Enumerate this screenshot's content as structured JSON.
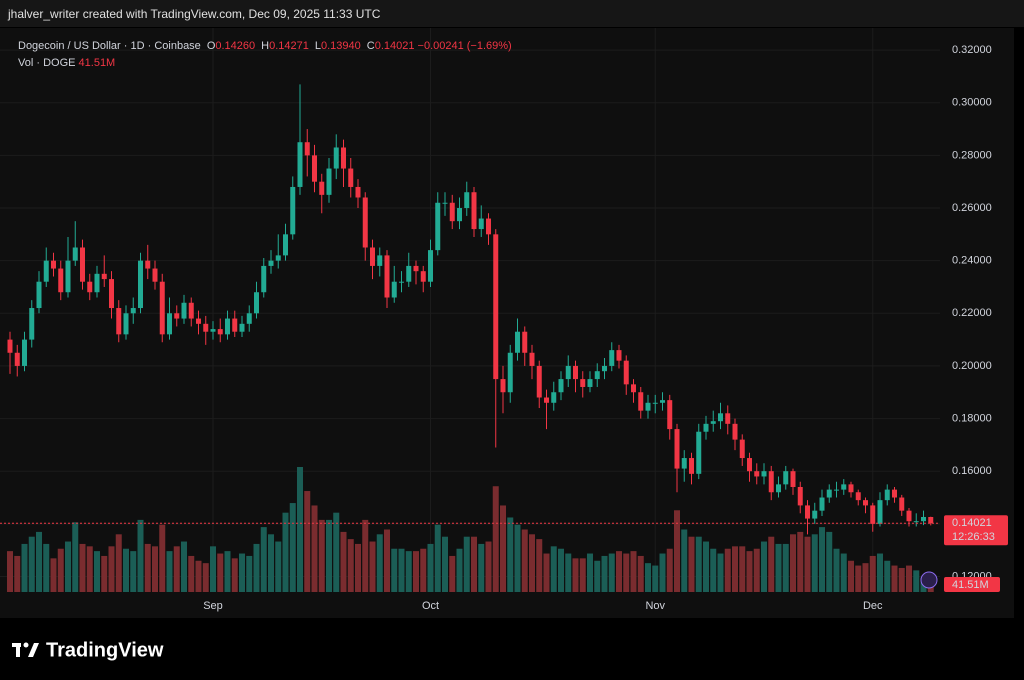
{
  "chart_data": {
    "type": "candlestick",
    "header": "jhalver_writer created with TradingView.com, Dec 09, 2025 11:33 UTC",
    "title": "Dogecoin / US Dollar · 1D · Coinbase",
    "ohlc_labels": [
      {
        "key": "O",
        "value": "0.14260"
      },
      {
        "key": "H",
        "value": "0.14271"
      },
      {
        "key": "L",
        "value": "0.13940"
      },
      {
        "key": "C",
        "value": "0.14021"
      }
    ],
    "change": "−0.00241 (−1.69%)",
    "volume_title": "Vol · DOGE",
    "volume_value": "41.51M",
    "categories": [
      null,
      null,
      null,
      null,
      null,
      null,
      null,
      null,
      null,
      null,
      null,
      null,
      null,
      null,
      null,
      null,
      null,
      null,
      null,
      null,
      null,
      null,
      null,
      null,
      null,
      null,
      null,
      null,
      "Sep",
      null,
      null,
      null,
      null,
      null,
      null,
      null,
      null,
      null,
      null,
      null,
      null,
      null,
      null,
      null,
      null,
      null,
      null,
      null,
      null,
      null,
      null,
      null,
      null,
      null,
      null,
      null,
      null,
      null,
      "Oct",
      null,
      null,
      null,
      null,
      null,
      null,
      null,
      null,
      null,
      null,
      null,
      null,
      null,
      null,
      null,
      null,
      null,
      null,
      null,
      null,
      null,
      null,
      null,
      null,
      null,
      null,
      null,
      null,
      null,
      null,
      "Nov",
      null,
      null,
      null,
      null,
      null,
      null,
      null,
      null,
      null,
      null,
      null,
      null,
      null,
      null,
      null,
      null,
      null,
      null,
      null,
      null,
      null,
      null,
      null,
      null,
      null,
      null,
      null,
      null,
      null,
      "Dec",
      null,
      null,
      null,
      null,
      null,
      null,
      null,
      null
    ],
    "open": [
      0.21,
      0.205,
      0.2,
      0.21,
      0.222,
      0.232,
      0.24,
      0.237,
      0.228,
      0.24,
      0.245,
      0.232,
      0.228,
      0.235,
      0.233,
      0.222,
      0.212,
      0.22,
      0.222,
      0.24,
      0.237,
      0.232,
      0.212,
      0.22,
      0.218,
      0.224,
      0.218,
      0.216,
      0.213,
      0.214,
      0.212,
      0.218,
      0.213,
      0.216,
      0.22,
      0.228,
      0.238,
      0.24,
      0.242,
      0.25,
      0.268,
      0.285,
      0.28,
      0.27,
      0.265,
      0.275,
      0.283,
      0.275,
      0.268,
      0.264,
      0.245,
      0.238,
      0.242,
      0.226,
      0.232,
      0.232,
      0.238,
      0.236,
      0.232,
      0.244,
      0.262,
      0.262,
      0.255,
      0.26,
      0.266,
      0.252,
      0.256,
      0.25,
      0.195,
      0.19,
      0.205,
      0.213,
      0.205,
      0.2,
      0.188,
      0.186,
      0.19,
      0.195,
      0.2,
      0.195,
      0.192,
      0.195,
      0.198,
      0.2,
      0.206,
      0.202,
      0.193,
      0.19,
      0.183,
      0.186,
      0.186,
      0.187,
      0.176,
      0.161,
      0.165,
      0.159,
      0.175,
      0.178,
      0.179,
      0.182,
      0.178,
      0.172,
      0.165,
      0.16,
      0.158,
      0.16,
      0.152,
      0.155,
      0.16,
      0.154,
      0.147,
      0.142,
      0.145,
      0.15,
      0.153,
      0.153,
      0.155,
      0.152,
      0.149,
      0.147,
      0.14,
      0.149,
      0.153,
      0.15,
      0.145,
      0.141,
      0.141,
      0.1426
    ],
    "high": [
      0.213,
      0.208,
      0.213,
      0.225,
      0.236,
      0.245,
      0.243,
      0.24,
      0.249,
      0.255,
      0.248,
      0.235,
      0.238,
      0.242,
      0.236,
      0.225,
      0.223,
      0.226,
      0.243,
      0.246,
      0.24,
      0.235,
      0.226,
      0.223,
      0.227,
      0.226,
      0.221,
      0.219,
      0.217,
      0.218,
      0.221,
      0.221,
      0.219,
      0.223,
      0.232,
      0.241,
      0.244,
      0.25,
      0.254,
      0.272,
      0.307,
      0.29,
      0.284,
      0.273,
      0.279,
      0.288,
      0.286,
      0.279,
      0.271,
      0.266,
      0.248,
      0.245,
      0.244,
      0.238,
      0.236,
      0.243,
      0.24,
      0.238,
      0.248,
      0.266,
      0.266,
      0.265,
      0.264,
      0.27,
      0.268,
      0.261,
      0.258,
      0.252,
      0.2,
      0.208,
      0.218,
      0.215,
      0.208,
      0.202,
      0.191,
      0.194,
      0.198,
      0.204,
      0.202,
      0.198,
      0.198,
      0.201,
      0.203,
      0.209,
      0.208,
      0.204,
      0.195,
      0.192,
      0.189,
      0.189,
      0.19,
      0.189,
      0.178,
      0.168,
      0.167,
      0.178,
      0.181,
      0.183,
      0.186,
      0.185,
      0.18,
      0.174,
      0.167,
      0.163,
      0.163,
      0.162,
      0.158,
      0.162,
      0.161,
      0.156,
      0.149,
      0.148,
      0.153,
      0.155,
      0.156,
      0.157,
      0.156,
      0.153,
      0.15,
      0.148,
      0.152,
      0.155,
      0.154,
      0.151,
      0.146,
      0.144,
      0.145,
      0.14271
    ],
    "low": [
      0.197,
      0.196,
      0.198,
      0.207,
      0.22,
      0.23,
      0.234,
      0.225,
      0.226,
      0.238,
      0.229,
      0.225,
      0.226,
      0.23,
      0.218,
      0.209,
      0.21,
      0.216,
      0.22,
      0.233,
      0.229,
      0.209,
      0.21,
      0.215,
      0.216,
      0.215,
      0.212,
      0.208,
      0.21,
      0.209,
      0.21,
      0.211,
      0.211,
      0.213,
      0.218,
      0.226,
      0.235,
      0.237,
      0.24,
      0.248,
      0.265,
      0.272,
      0.266,
      0.258,
      0.262,
      0.271,
      0.268,
      0.264,
      0.26,
      0.24,
      0.233,
      0.234,
      0.222,
      0.224,
      0.228,
      0.23,
      0.231,
      0.228,
      0.23,
      0.242,
      0.257,
      0.252,
      0.252,
      0.257,
      0.249,
      0.249,
      0.246,
      0.169,
      0.182,
      0.186,
      0.202,
      0.2,
      0.195,
      0.184,
      0.176,
      0.183,
      0.187,
      0.192,
      0.19,
      0.188,
      0.19,
      0.192,
      0.195,
      0.198,
      0.199,
      0.189,
      0.186,
      0.18,
      0.18,
      0.182,
      0.183,
      0.172,
      0.152,
      0.156,
      0.155,
      0.157,
      0.172,
      0.175,
      0.176,
      0.174,
      0.168,
      0.162,
      0.156,
      0.155,
      0.155,
      0.149,
      0.15,
      0.153,
      0.151,
      0.144,
      0.136,
      0.14,
      0.143,
      0.148,
      0.15,
      0.151,
      0.15,
      0.147,
      0.144,
      0.137,
      0.139,
      0.147,
      0.148,
      0.143,
      0.139,
      0.139,
      0.1395,
      0.1394
    ],
    "close": [
      0.205,
      0.2,
      0.21,
      0.222,
      0.232,
      0.24,
      0.237,
      0.228,
      0.24,
      0.245,
      0.232,
      0.228,
      0.235,
      0.233,
      0.222,
      0.212,
      0.22,
      0.222,
      0.24,
      0.237,
      0.232,
      0.212,
      0.22,
      0.218,
      0.224,
      0.218,
      0.216,
      0.213,
      0.214,
      0.212,
      0.218,
      0.213,
      0.216,
      0.22,
      0.228,
      0.238,
      0.24,
      0.242,
      0.25,
      0.268,
      0.285,
      0.28,
      0.27,
      0.265,
      0.275,
      0.283,
      0.275,
      0.268,
      0.264,
      0.245,
      0.238,
      0.242,
      0.226,
      0.232,
      0.232,
      0.238,
      0.236,
      0.232,
      0.244,
      0.262,
      0.262,
      0.255,
      0.26,
      0.266,
      0.252,
      0.256,
      0.25,
      0.195,
      0.19,
      0.205,
      0.213,
      0.205,
      0.2,
      0.188,
      0.186,
      0.19,
      0.195,
      0.2,
      0.195,
      0.192,
      0.195,
      0.198,
      0.2,
      0.206,
      0.202,
      0.193,
      0.19,
      0.183,
      0.186,
      0.186,
      0.187,
      0.176,
      0.161,
      0.165,
      0.159,
      0.175,
      0.178,
      0.179,
      0.182,
      0.178,
      0.172,
      0.165,
      0.16,
      0.158,
      0.16,
      0.152,
      0.155,
      0.16,
      0.154,
      0.147,
      0.142,
      0.145,
      0.15,
      0.153,
      0.153,
      0.155,
      0.152,
      0.149,
      0.147,
      0.14,
      0.149,
      0.153,
      0.15,
      0.145,
      0.141,
      0.141,
      0.1426,
      0.14021
    ],
    "volume": [
      170,
      150,
      200,
      230,
      250,
      200,
      140,
      180,
      210,
      290,
      200,
      190,
      170,
      150,
      190,
      240,
      180,
      170,
      300,
      200,
      190,
      280,
      170,
      190,
      210,
      150,
      130,
      120,
      190,
      160,
      170,
      140,
      160,
      150,
      200,
      270,
      240,
      210,
      330,
      370,
      520,
      420,
      360,
      300,
      300,
      330,
      250,
      220,
      200,
      300,
      210,
      240,
      260,
      180,
      180,
      170,
      170,
      180,
      200,
      280,
      230,
      150,
      180,
      230,
      230,
      200,
      210,
      440,
      360,
      310,
      280,
      260,
      240,
      220,
      160,
      190,
      180,
      160,
      140,
      140,
      160,
      130,
      150,
      160,
      170,
      160,
      170,
      150,
      120,
      110,
      160,
      180,
      340,
      260,
      230,
      230,
      210,
      180,
      160,
      180,
      190,
      190,
      170,
      180,
      210,
      230,
      200,
      200,
      240,
      250,
      230,
      240,
      270,
      250,
      180,
      160,
      130,
      110,
      120,
      150,
      160,
      130,
      110,
      100,
      110,
      90,
      60,
      41.51
    ],
    "up_color": "#22ab94",
    "down_color": "#f23645",
    "volume_up_color": "#1b5e56",
    "volume_down_color": "#7a2c2f",
    "ylim": [
      0.1141,
      0.3284
    ],
    "yticks": [
      {
        "value": 0.12,
        "label": "0.12000"
      },
      {
        "value": 0.14,
        "label": "0.14000"
      },
      {
        "value": 0.16,
        "label": "0.16000"
      },
      {
        "value": 0.18,
        "label": "0.18000"
      },
      {
        "value": 0.2,
        "label": "0.20000"
      },
      {
        "value": 0.22,
        "label": "0.22000"
      },
      {
        "value": 0.24,
        "label": "0.24000"
      },
      {
        "value": 0.26,
        "label": "0.26000"
      },
      {
        "value": 0.28,
        "label": "0.28000"
      },
      {
        "value": 0.3,
        "label": "0.30000"
      },
      {
        "value": 0.32,
        "label": "0.32000"
      }
    ],
    "last_price": {
      "value": 0.14021,
      "label": "0.14021"
    },
    "countdown": "12:26:33",
    "grid": true,
    "brand": "TradingView"
  }
}
